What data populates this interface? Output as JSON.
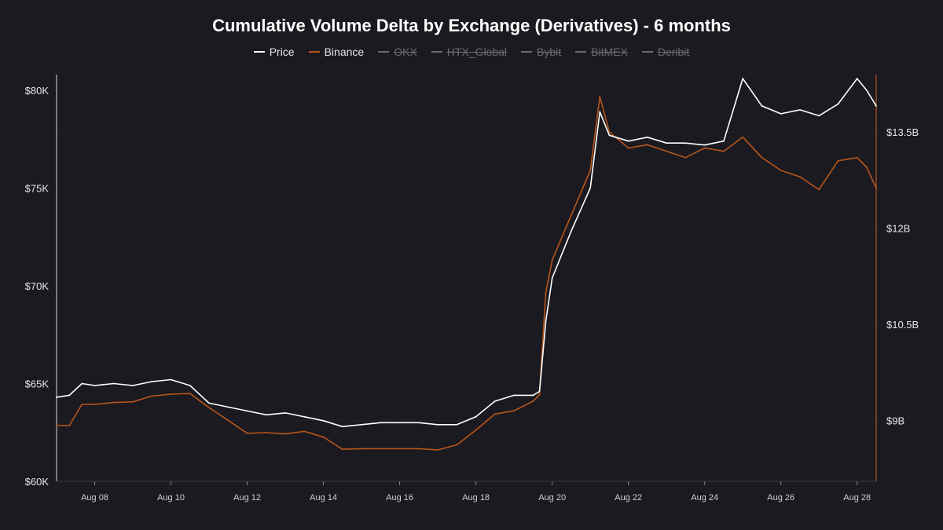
{
  "chart_data": {
    "type": "line",
    "title": "Cumulative Volume Delta by Exchange (Derivatives) - 6 months",
    "legend_position": "top-center",
    "grid": true,
    "x_ticks": [
      "Aug 08",
      "Aug 10",
      "Aug 12",
      "Aug 14",
      "Aug 16",
      "Aug 18",
      "Aug 20",
      "Aug 22",
      "Aug 24",
      "Aug 26",
      "Aug 28"
    ],
    "xlim": [
      "Aug 07 00:00",
      "Aug 28 12:00"
    ],
    "y_left": {
      "ticks": [
        "$60K",
        "$65K",
        "$70K",
        "$75K",
        "$80K"
      ],
      "tick_values": [
        60000,
        65000,
        70000,
        75000,
        80000
      ],
      "ylim": [
        60000,
        80000
      ]
    },
    "y_right": {
      "ticks": [
        "$9B",
        "$10.5B",
        "$12B",
        "$13.5B"
      ],
      "tick_values": [
        9000000000,
        10500000000,
        12000000000,
        13500000000
      ],
      "ylim": [
        8050000000,
        14150000000
      ],
      "axis_color": "#b8561b"
    },
    "series": [
      {
        "name": "Price",
        "color": "#ffffff",
        "axis": "left",
        "visible": true,
        "x": [
          "Aug 07 00:00",
          "Aug 07 08:00",
          "Aug 07 16:00",
          "Aug 08 00:00",
          "Aug 08 12:00",
          "Aug 09 00:00",
          "Aug 09 12:00",
          "Aug 10 00:00",
          "Aug 10 12:00",
          "Aug 11 00:00",
          "Aug 11 12:00",
          "Aug 12 00:00",
          "Aug 12 12:00",
          "Aug 13 00:00",
          "Aug 13 12:00",
          "Aug 14 00:00",
          "Aug 14 12:00",
          "Aug 15 00:00",
          "Aug 15 12:00",
          "Aug 16 00:00",
          "Aug 16 12:00",
          "Aug 17 00:00",
          "Aug 17 12:00",
          "Aug 18 00:00",
          "Aug 18 12:00",
          "Aug 19 00:00",
          "Aug 19 12:00",
          "Aug 19 16:00",
          "Aug 19 20:00",
          "Aug 20 00:00",
          "Aug 20 12:00",
          "Aug 21 00:00",
          "Aug 21 06:00",
          "Aug 21 12:00",
          "Aug 22 00:00",
          "Aug 22 12:00",
          "Aug 23 00:00",
          "Aug 23 12:00",
          "Aug 24 00:00",
          "Aug 24 12:00",
          "Aug 25 00:00",
          "Aug 25 12:00",
          "Aug 26 00:00",
          "Aug 26 12:00",
          "Aug 27 00:00",
          "Aug 27 12:00",
          "Aug 28 00:00",
          "Aug 28 06:00",
          "Aug 28 12:00"
        ],
        "values": [
          64300,
          64400,
          65000,
          64900,
          65000,
          64900,
          65100,
          65200,
          64900,
          64000,
          63800,
          63600,
          63400,
          63500,
          63300,
          63100,
          62800,
          62900,
          63000,
          63000,
          63000,
          62900,
          62900,
          63300,
          64100,
          64400,
          64400,
          64600,
          68200,
          70400,
          72800,
          75000,
          78900,
          77700,
          77400,
          77600,
          77300,
          77300,
          77200,
          77400,
          80600,
          79200,
          78800,
          79000,
          78700,
          79300,
          80600,
          80000,
          79200
        ]
      },
      {
        "name": "Binance",
        "color": "#b8561b",
        "axis": "right",
        "visible": true,
        "x": [
          "Aug 07 00:00",
          "Aug 07 08:00",
          "Aug 07 16:00",
          "Aug 08 00:00",
          "Aug 08 12:00",
          "Aug 09 00:00",
          "Aug 09 12:00",
          "Aug 10 00:00",
          "Aug 10 12:00",
          "Aug 11 00:00",
          "Aug 11 12:00",
          "Aug 12 00:00",
          "Aug 12 12:00",
          "Aug 13 00:00",
          "Aug 13 12:00",
          "Aug 14 00:00",
          "Aug 14 12:00",
          "Aug 15 00:00",
          "Aug 15 12:00",
          "Aug 16 00:00",
          "Aug 16 12:00",
          "Aug 17 00:00",
          "Aug 17 12:00",
          "Aug 18 00:00",
          "Aug 18 12:00",
          "Aug 19 00:00",
          "Aug 19 12:00",
          "Aug 19 16:00",
          "Aug 19 20:00",
          "Aug 20 00:00",
          "Aug 20 12:00",
          "Aug 21 00:00",
          "Aug 21 06:00",
          "Aug 21 12:00",
          "Aug 22 00:00",
          "Aug 22 12:00",
          "Aug 23 00:00",
          "Aug 23 12:00",
          "Aug 24 00:00",
          "Aug 24 12:00",
          "Aug 25 00:00",
          "Aug 25 12:00",
          "Aug 26 00:00",
          "Aug 26 12:00",
          "Aug 27 00:00",
          "Aug 27 12:00",
          "Aug 28 00:00",
          "Aug 28 06:00",
          "Aug 28 12:00"
        ],
        "values": [
          8920000000,
          8920000000,
          9250000000,
          9250000000,
          9280000000,
          9290000000,
          9380000000,
          9410000000,
          9420000000,
          9200000000,
          9000000000,
          8800000000,
          8810000000,
          8790000000,
          8830000000,
          8740000000,
          8550000000,
          8560000000,
          8560000000,
          8560000000,
          8560000000,
          8540000000,
          8620000000,
          8850000000,
          9100000000,
          9150000000,
          9300000000,
          9400000000,
          11000000000,
          11500000000,
          12200000000,
          12900000000,
          14050000000,
          13500000000,
          13250000000,
          13300000000,
          13200000000,
          13100000000,
          13250000000,
          13200000000,
          13420000000,
          13100000000,
          12900000000,
          12800000000,
          12600000000,
          13050000000,
          13100000000,
          12950000000,
          12620000000
        ]
      },
      {
        "name": "OKX",
        "color": "#8a8a90",
        "axis": "right",
        "visible": false
      },
      {
        "name": "HTX_Global",
        "color": "#8a8a90",
        "axis": "right",
        "visible": false
      },
      {
        "name": "Bybit",
        "color": "#8a8a90",
        "axis": "right",
        "visible": false
      },
      {
        "name": "BitMEX",
        "color": "#8a8a90",
        "axis": "right",
        "visible": false
      },
      {
        "name": "Deribit",
        "color": "#8a8a90",
        "axis": "right",
        "visible": false
      }
    ]
  }
}
